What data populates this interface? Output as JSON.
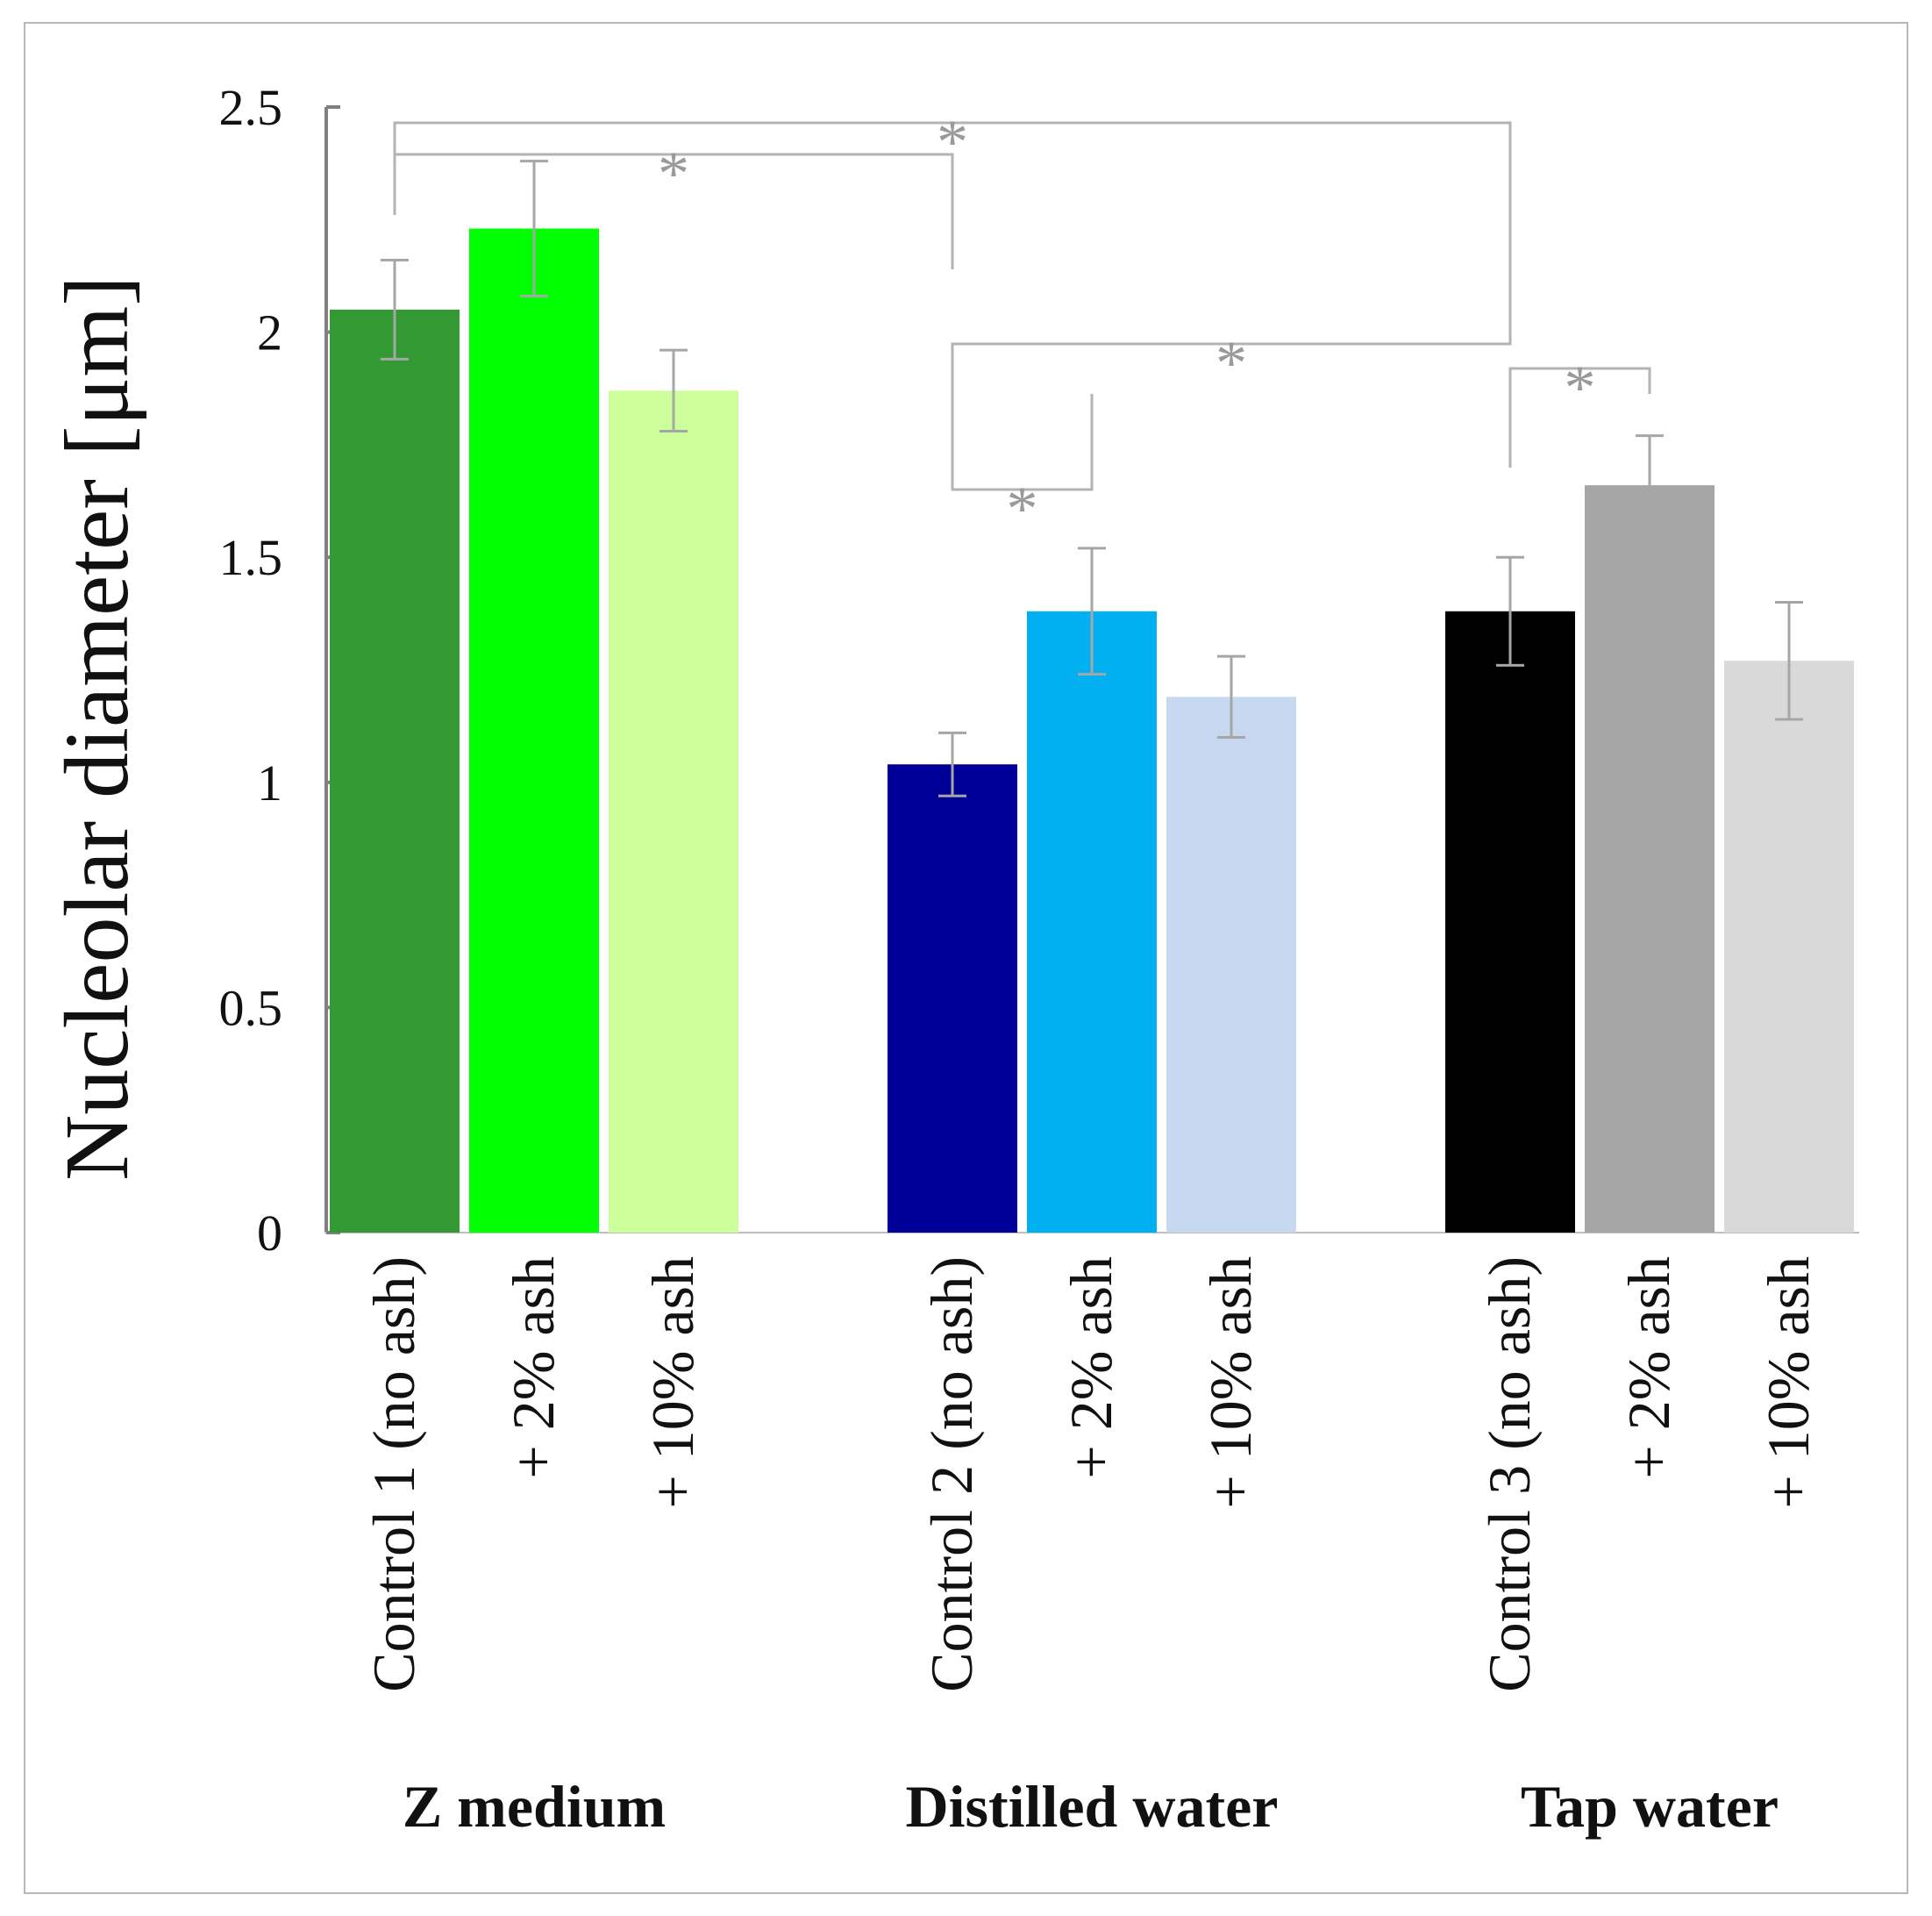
{
  "chart_data": {
    "type": "bar",
    "title": "",
    "xlabel": "",
    "ylabel": "Nucleolar diameter [μm]",
    "ylim": [
      0,
      2.5
    ],
    "yticks": [
      "0",
      "0.5",
      "1",
      "1.5",
      "2",
      "2.5"
    ],
    "yticks_values": [
      0,
      0.5,
      1,
      1.5,
      2,
      2.5
    ],
    "grid": false,
    "groups": [
      {
        "name": "Z medium",
        "bars": [
          {
            "label": "Control 1 (no ash)",
            "value": 2.05,
            "error": 0.11,
            "color": "#339933"
          },
          {
            "label": "+ 2% ash",
            "value": 2.23,
            "error": 0.15,
            "color": "#00ff00"
          },
          {
            "label": "+ 10% ash",
            "value": 1.87,
            "error": 0.09,
            "color": "#ccff99"
          }
        ]
      },
      {
        "name": "Distilled water",
        "bars": [
          {
            "label": "Control 2 (no ash)",
            "value": 1.04,
            "error": 0.07,
            "color": "#000099"
          },
          {
            "label": "+ 2% ash",
            "value": 1.38,
            "error": 0.14,
            "color": "#00b0f0"
          },
          {
            "label": "+ 10% ash",
            "value": 1.19,
            "error": 0.09,
            "color": "#c6d9f0"
          }
        ]
      },
      {
        "name": "Tap water",
        "bars": [
          {
            "label": "Control 3 (no ash)",
            "value": 1.38,
            "error": 0.12,
            "color": "#000000"
          },
          {
            "label": "+ 2% ash",
            "value": 1.66,
            "error": 0.11,
            "color": "#a6a6a6"
          },
          {
            "label": "+ 10% ash",
            "value": 1.27,
            "error": 0.13,
            "color": "#d9d9d9"
          }
        ]
      }
    ],
    "significance_marker": "*",
    "significance": [
      {
        "from": [
          0,
          0
        ],
        "to": [
          2,
          0
        ],
        "label": "*"
      },
      {
        "from": [
          0,
          0
        ],
        "to": [
          1,
          0
        ],
        "label": "*"
      },
      {
        "from": [
          1,
          0
        ],
        "to": [
          2,
          0
        ],
        "label": "*"
      },
      {
        "from": [
          2,
          0
        ],
        "to": [
          2,
          1
        ],
        "label": "*"
      },
      {
        "from": [
          1,
          0
        ],
        "to": [
          1,
          1
        ],
        "label": "*"
      }
    ],
    "colors": {
      "axis": "#808080",
      "bracket": "#b3b3b3",
      "errorbar": "#a6a6a6",
      "star": "#9a9a9a"
    }
  }
}
